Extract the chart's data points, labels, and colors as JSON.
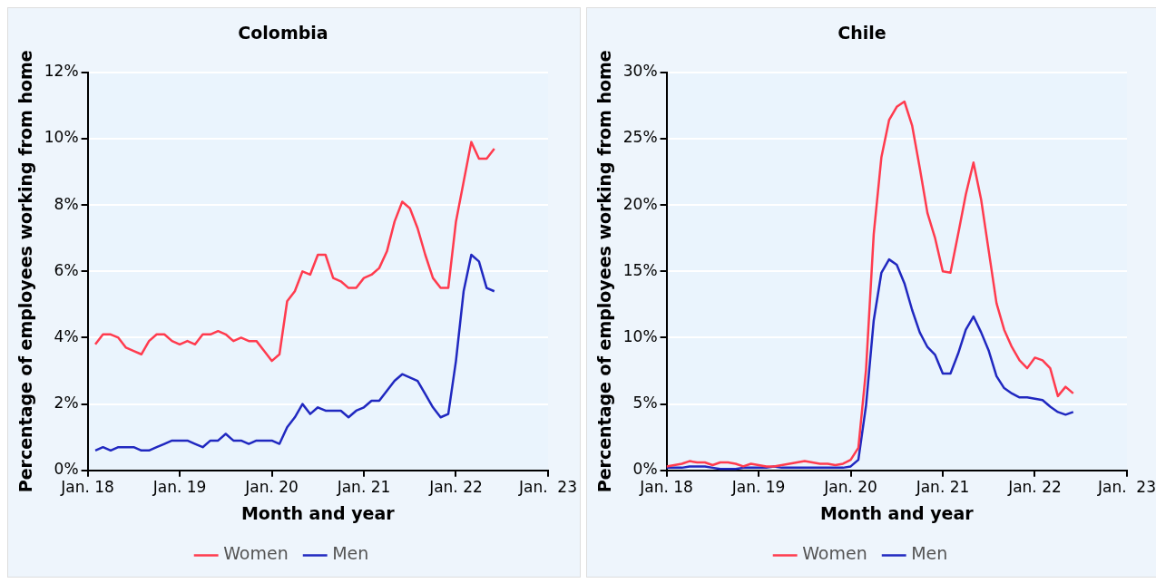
{
  "chart_data": [
    {
      "type": "line",
      "title": "Colombia",
      "xlabel": "Month and year",
      "ylabel": "Percentage of employees working from home",
      "x": [
        "2018-02",
        "2018-03",
        "2018-04",
        "2018-05",
        "2018-06",
        "2018-07",
        "2018-08",
        "2018-09",
        "2018-10",
        "2018-11",
        "2018-12",
        "2019-01",
        "2019-02",
        "2019-03",
        "2019-04",
        "2019-05",
        "2019-06",
        "2019-07",
        "2019-08",
        "2019-09",
        "2019-10",
        "2019-11",
        "2019-12",
        "2020-01",
        "2020-02",
        "2020-03",
        "2020-04",
        "2020-05",
        "2020-06",
        "2020-07",
        "2020-08",
        "2020-09",
        "2020-10",
        "2020-11",
        "2020-12",
        "2021-01",
        "2021-02",
        "2021-03",
        "2021-04",
        "2021-05",
        "2021-06",
        "2021-07",
        "2021-08",
        "2021-09",
        "2021-10",
        "2021-11",
        "2021-12",
        "2022-01",
        "2022-02",
        "2022-03",
        "2022-04",
        "2022-05",
        "2022-06"
      ],
      "series": [
        {
          "name": "Women",
          "color": "#ff3b4e",
          "values": [
            3.8,
            4.1,
            4.1,
            4.0,
            3.7,
            3.6,
            3.5,
            3.9,
            4.1,
            4.1,
            3.9,
            3.8,
            3.9,
            3.8,
            4.1,
            4.1,
            4.2,
            4.1,
            3.9,
            4.0,
            3.9,
            3.9,
            3.6,
            3.3,
            3.5,
            5.1,
            5.4,
            6.0,
            5.9,
            6.5,
            6.5,
            5.8,
            5.7,
            5.5,
            5.5,
            5.8,
            5.9,
            6.1,
            6.6,
            7.5,
            8.1,
            7.9,
            7.3,
            6.5,
            5.8,
            5.5,
            5.5,
            7.5,
            8.7,
            9.9,
            9.4,
            9.4,
            9.7
          ]
        },
        {
          "name": "Men",
          "color": "#2028c0",
          "values": [
            0.6,
            0.7,
            0.6,
            0.7,
            0.7,
            0.7,
            0.6,
            0.6,
            0.7,
            0.8,
            0.9,
            0.9,
            0.9,
            0.8,
            0.7,
            0.9,
            0.9,
            1.1,
            0.9,
            0.9,
            0.8,
            0.9,
            0.9,
            0.9,
            0.8,
            1.3,
            1.6,
            2.0,
            1.7,
            1.9,
            1.8,
            1.8,
            1.8,
            1.6,
            1.8,
            1.9,
            2.1,
            2.1,
            2.4,
            2.7,
            2.9,
            2.8,
            2.7,
            2.3,
            1.9,
            1.6,
            1.7,
            3.3,
            5.4,
            6.5,
            6.3,
            5.5,
            5.4
          ]
        }
      ],
      "xlim": [
        "2018-01",
        "2023-01"
      ],
      "xticks": [
        {
          "value": "2018-01",
          "label": "Jan. 18"
        },
        {
          "value": "2019-01",
          "label": "Jan. 19"
        },
        {
          "value": "2020-01",
          "label": "Jan. 20"
        },
        {
          "value": "2021-01",
          "label": "Jan. 21"
        },
        {
          "value": "2022-01",
          "label": "Jan. 22"
        },
        {
          "value": "2023-01",
          "label": "Jan.  23"
        }
      ],
      "ylim": [
        0,
        12
      ],
      "yticks": [
        {
          "value": 0,
          "label": "0%"
        },
        {
          "value": 2,
          "label": "2%"
        },
        {
          "value": 4,
          "label": "4%"
        },
        {
          "value": 6,
          "label": "6%"
        },
        {
          "value": 8,
          "label": "8%"
        },
        {
          "value": 10,
          "label": "10%"
        },
        {
          "value": 12,
          "label": "12%"
        }
      ],
      "grid": "y",
      "legend": "bottom",
      "marker": "none",
      "line_style": "solid"
    },
    {
      "type": "line",
      "title": "Chile",
      "xlabel": "Month and year",
      "ylabel": "Percentage of employees working from home",
      "x": [
        "2018-01",
        "2018-02",
        "2018-03",
        "2018-04",
        "2018-05",
        "2018-06",
        "2018-07",
        "2018-08",
        "2018-09",
        "2018-10",
        "2018-11",
        "2018-12",
        "2019-01",
        "2019-02",
        "2019-03",
        "2019-04",
        "2019-05",
        "2019-06",
        "2019-07",
        "2019-08",
        "2019-09",
        "2019-10",
        "2019-11",
        "2019-12",
        "2020-01",
        "2020-02",
        "2020-03",
        "2020-04",
        "2020-05",
        "2020-06",
        "2020-07",
        "2020-08",
        "2020-09",
        "2020-10",
        "2020-11",
        "2020-12",
        "2021-01",
        "2021-02",
        "2021-03",
        "2021-04",
        "2021-05",
        "2021-06",
        "2021-07",
        "2021-08",
        "2021-09",
        "2021-10",
        "2021-11",
        "2021-12",
        "2022-01",
        "2022-02",
        "2022-03",
        "2022-04",
        "2022-05",
        "2022-06"
      ],
      "series": [
        {
          "name": "Women",
          "color": "#ff3b4e",
          "values": [
            0.3,
            0.4,
            0.5,
            0.7,
            0.6,
            0.6,
            0.4,
            0.6,
            0.6,
            0.5,
            0.3,
            0.5,
            0.4,
            0.3,
            0.3,
            0.4,
            0.5,
            0.6,
            0.7,
            0.6,
            0.5,
            0.5,
            0.4,
            0.5,
            0.8,
            1.7,
            7.6,
            17.8,
            23.6,
            26.4,
            27.4,
            27.8,
            26.0,
            22.8,
            19.4,
            17.5,
            15.0,
            14.9,
            17.8,
            20.8,
            23.2,
            20.4,
            16.5,
            12.6,
            10.6,
            9.3,
            8.3,
            7.7,
            8.5,
            8.3,
            7.7,
            5.6,
            6.3,
            5.8
          ]
        },
        {
          "name": "Men",
          "color": "#2028c0",
          "values": [
            0.2,
            0.2,
            0.2,
            0.3,
            0.3,
            0.3,
            0.2,
            0.1,
            0.1,
            0.1,
            0.2,
            0.2,
            0.2,
            0.2,
            0.3,
            0.2,
            0.2,
            0.2,
            0.2,
            0.2,
            0.2,
            0.2,
            0.2,
            0.2,
            0.3,
            0.8,
            4.9,
            11.3,
            14.9,
            15.9,
            15.5,
            14.1,
            12.1,
            10.4,
            9.3,
            8.7,
            7.3,
            7.3,
            8.8,
            10.6,
            11.6,
            10.4,
            9.0,
            7.1,
            6.2,
            5.8,
            5.5,
            5.5,
            5.4,
            5.3,
            4.8,
            4.4,
            4.2,
            4.4
          ]
        }
      ],
      "xlim": [
        "2018-01",
        "2023-01"
      ],
      "xticks": [
        {
          "value": "2018-01",
          "label": "Jan. 18"
        },
        {
          "value": "2019-01",
          "label": "Jan. 19"
        },
        {
          "value": "2020-01",
          "label": "Jan. 20"
        },
        {
          "value": "2021-01",
          "label": "Jan. 21"
        },
        {
          "value": "2022-01",
          "label": "Jan. 22"
        },
        {
          "value": "2023-01",
          "label": "Jan.  23"
        }
      ],
      "ylim": [
        0,
        30
      ],
      "yticks": [
        {
          "value": 0,
          "label": "0%"
        },
        {
          "value": 5,
          "label": "5%"
        },
        {
          "value": 10,
          "label": "10%"
        },
        {
          "value": 15,
          "label": "15%"
        },
        {
          "value": 20,
          "label": "20%"
        },
        {
          "value": 25,
          "label": "25%"
        },
        {
          "value": 30,
          "label": "30%"
        }
      ],
      "grid": "y",
      "legend": "bottom",
      "marker": "none",
      "line_style": "solid"
    }
  ]
}
